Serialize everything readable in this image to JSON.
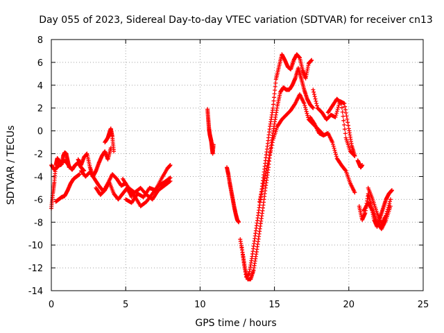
{
  "chart_data": {
    "type": "scatter",
    "title": "Day 055 of 2023, Sidereal Day-to-day VTEC variation (SDTVAR) for receiver cn13",
    "xlabel": "GPS time / hours",
    "ylabel": "SDTVAR / TECUs",
    "xlim": [
      0,
      25
    ],
    "ylim": [
      -14,
      8
    ],
    "xticks": [
      0,
      5,
      10,
      15,
      20,
      25
    ],
    "yticks": [
      -14,
      -12,
      -10,
      -8,
      -6,
      -4,
      -2,
      0,
      2,
      4,
      6,
      8
    ],
    "grid": true,
    "marker": "+",
    "color": "#ff0000",
    "series": [
      {
        "name": "seg-early-1",
        "x": [
          0.0,
          0.1,
          0.2,
          0.3,
          0.4,
          0.5,
          0.6,
          0.7,
          0.8,
          0.9,
          1.0,
          1.1,
          1.2
        ],
        "y": [
          -6.8,
          -5.5,
          -4.5,
          -3.0,
          -2.4,
          -2.6,
          -3.0,
          -2.9,
          -2.2,
          -1.9,
          -2.0,
          -2.6,
          -3.2
        ]
      },
      {
        "name": "seg-early-2",
        "x": [
          0.0,
          0.2,
          0.4,
          0.6,
          0.8,
          1.0,
          1.2,
          1.4,
          1.6,
          1.8,
          2.0,
          2.2
        ],
        "y": [
          -3.0,
          -3.4,
          -3.2,
          -2.8,
          -2.6,
          -2.7,
          -3.1,
          -3.4,
          -3.0,
          -2.8,
          -3.2,
          -3.5
        ]
      },
      {
        "name": "seg-early-3",
        "x": [
          0.3,
          0.5,
          0.7,
          0.9,
          1.1,
          1.3,
          1.5,
          1.7,
          1.9
        ],
        "y": [
          -6.2,
          -6.0,
          -5.8,
          -5.7,
          -5.2,
          -4.6,
          -4.2,
          -4.0,
          -3.8
        ]
      },
      {
        "name": "seg-2",
        "x": [
          1.8,
          2.0,
          2.2,
          2.4,
          2.6,
          2.8,
          3.0,
          3.2,
          3.4,
          3.6,
          3.8,
          4.0
        ],
        "y": [
          -2.5,
          -3.0,
          -2.3,
          -2.0,
          -3.2,
          -4.0,
          -3.5,
          -2.8,
          -2.2,
          -1.8,
          -2.5,
          -1.5
        ]
      },
      {
        "name": "seg-3",
        "x": [
          2.0,
          2.3,
          2.6,
          2.9,
          3.2,
          3.5,
          3.8,
          4.1,
          4.4,
          4.7,
          5.0
        ],
        "y": [
          -3.5,
          -4.0,
          -3.6,
          -4.2,
          -4.8,
          -5.3,
          -4.6,
          -3.8,
          -4.2,
          -4.8,
          -4.6
        ]
      },
      {
        "name": "seg-4",
        "x": [
          3.0,
          3.3,
          3.6,
          3.9,
          4.2,
          4.5,
          4.8,
          5.1,
          5.4
        ],
        "y": [
          -5.0,
          -5.6,
          -5.2,
          -4.5,
          -5.5,
          -6.0,
          -5.5,
          -5.0,
          -5.8
        ]
      },
      {
        "name": "seg-4b",
        "x": [
          3.6,
          3.8,
          3.9,
          4.0,
          4.1,
          4.2
        ],
        "y": [
          -1.0,
          -0.6,
          -0.2,
          0.2,
          -0.5,
          -1.8
        ]
      },
      {
        "name": "seg-5",
        "x": [
          5.0,
          5.4,
          5.8,
          6.2,
          6.6,
          7.0,
          7.4,
          7.8,
          8.0
        ],
        "y": [
          -6.0,
          -6.3,
          -5.5,
          -5.8,
          -5.0,
          -5.2,
          -4.2,
          -3.3,
          -3.0
        ]
      },
      {
        "name": "seg-6",
        "x": [
          5.2,
          5.6,
          6.0,
          6.4,
          6.8,
          7.2,
          7.6,
          8.0
        ],
        "y": [
          -5.3,
          -5.7,
          -6.6,
          -6.2,
          -5.5,
          -4.8,
          -4.5,
          -4.1
        ]
      },
      {
        "name": "seg-7",
        "x": [
          4.8,
          5.2,
          5.6,
          6.0,
          6.4,
          6.8,
          7.2,
          7.6,
          8.0
        ],
        "y": [
          -4.2,
          -5.0,
          -5.4,
          -5.0,
          -5.6,
          -6.0,
          -5.2,
          -4.8,
          -4.4
        ]
      },
      {
        "name": "seg-8",
        "x": [
          10.5,
          10.55,
          10.6,
          10.65,
          10.7,
          10.75,
          10.8,
          10.85,
          10.9
        ],
        "y": [
          1.9,
          1.0,
          0.2,
          -0.3,
          -0.6,
          -0.9,
          -1.5,
          -2.0,
          -1.2
        ]
      },
      {
        "name": "seg-9",
        "x": [
          11.8,
          11.9,
          12.0,
          12.1,
          12.2,
          12.3,
          12.4,
          12.5,
          12.6
        ],
        "y": [
          -3.2,
          -3.8,
          -4.6,
          -5.3,
          -6.0,
          -6.7,
          -7.3,
          -7.8,
          -8.0
        ]
      },
      {
        "name": "seg-10",
        "x": [
          12.7,
          12.9,
          13.1,
          13.3,
          13.5,
          13.7,
          13.9,
          14.1,
          14.3,
          14.5,
          14.7,
          14.9,
          15.1,
          15.3,
          15.5,
          15.7,
          15.9,
          16.1,
          16.3,
          16.5,
          16.7,
          16.9,
          17.1,
          17.3,
          17.5
        ],
        "y": [
          -9.5,
          -11.0,
          -12.8,
          -12.5,
          -11.0,
          -9.2,
          -7.4,
          -5.6,
          -3.6,
          -1.6,
          0.4,
          2.0,
          4.5,
          5.6,
          6.7,
          6.2,
          5.6,
          5.4,
          6.2,
          6.7,
          6.4,
          5.3,
          4.6,
          5.9,
          6.2
        ]
      },
      {
        "name": "seg-11",
        "x": [
          12.8,
          13.0,
          13.2,
          13.4,
          13.6,
          13.8,
          14.0,
          14.2,
          14.4,
          14.6,
          14.8,
          15.0,
          15.2,
          15.4,
          15.6,
          15.8,
          16.0,
          16.2,
          16.4,
          16.6,
          16.8,
          17.0,
          17.2,
          17.4,
          17.6
        ],
        "y": [
          -10.2,
          -12.0,
          -13.0,
          -13.0,
          -12.2,
          -10.6,
          -8.8,
          -7.0,
          -5.0,
          -3.2,
          -1.0,
          0.6,
          2.2,
          3.4,
          3.8,
          3.6,
          3.6,
          4.0,
          4.6,
          5.5,
          4.6,
          3.6,
          2.8,
          2.3,
          2.0
        ]
      },
      {
        "name": "seg-12",
        "x": [
          14.0,
          14.3,
          14.6,
          14.9,
          15.2,
          15.5,
          15.8,
          16.1,
          16.4,
          16.7,
          17.0,
          17.3,
          17.6,
          17.9,
          18.2
        ],
        "y": [
          -6.2,
          -4.4,
          -2.6,
          -0.8,
          0.4,
          1.0,
          1.4,
          1.8,
          2.4,
          3.2,
          2.4,
          1.0,
          0.6,
          0.2,
          -0.2
        ]
      },
      {
        "name": "seg-13",
        "x": [
          17.6,
          17.9,
          18.2,
          18.5,
          18.8,
          19.1,
          19.4,
          19.7,
          20.0,
          20.2,
          20.4
        ],
        "y": [
          3.6,
          2.0,
          1.6,
          1.0,
          1.4,
          1.2,
          2.6,
          2.4,
          0.2,
          -1.3,
          -2.2
        ]
      },
      {
        "name": "seg-14",
        "x": [
          17.4,
          17.7,
          18.0,
          18.3,
          18.6,
          18.9,
          19.2,
          19.5,
          19.8,
          20.1,
          20.4
        ],
        "y": [
          1.2,
          0.6,
          -0.2,
          -0.4,
          -0.2,
          -1.0,
          -2.4,
          -3.0,
          -3.5,
          -4.6,
          -5.4
        ]
      },
      {
        "name": "seg-15",
        "x": [
          18.6,
          18.9,
          19.2,
          19.5,
          19.8,
          20.1,
          20.4
        ],
        "y": [
          1.6,
          2.2,
          2.8,
          2.4,
          -0.6,
          -1.8,
          -2.2
        ]
      },
      {
        "name": "seg-16",
        "x": [
          20.6,
          20.7,
          20.8,
          20.9
        ],
        "y": [
          -2.6,
          -2.9,
          -3.2,
          -3.0
        ]
      },
      {
        "name": "seg-17",
        "x": [
          20.7,
          20.9,
          21.1,
          21.3,
          21.5,
          21.7,
          21.9,
          22.1,
          22.3,
          22.5,
          22.7,
          22.9
        ],
        "y": [
          -6.6,
          -7.8,
          -7.2,
          -5.5,
          -6.5,
          -7.8,
          -8.4,
          -7.6,
          -6.8,
          -6.0,
          -5.5,
          -5.2
        ]
      },
      {
        "name": "seg-18",
        "x": [
          21.0,
          21.3,
          21.6,
          21.9,
          22.2,
          22.5,
          22.8
        ],
        "y": [
          -7.0,
          -6.3,
          -7.0,
          -8.0,
          -8.6,
          -7.8,
          -6.6
        ]
      },
      {
        "name": "seg-19",
        "x": [
          21.3,
          21.6,
          21.9,
          22.2,
          22.5,
          22.8
        ],
        "y": [
          -5.0,
          -6.0,
          -7.2,
          -8.2,
          -7.4,
          -6.0
        ]
      }
    ]
  }
}
